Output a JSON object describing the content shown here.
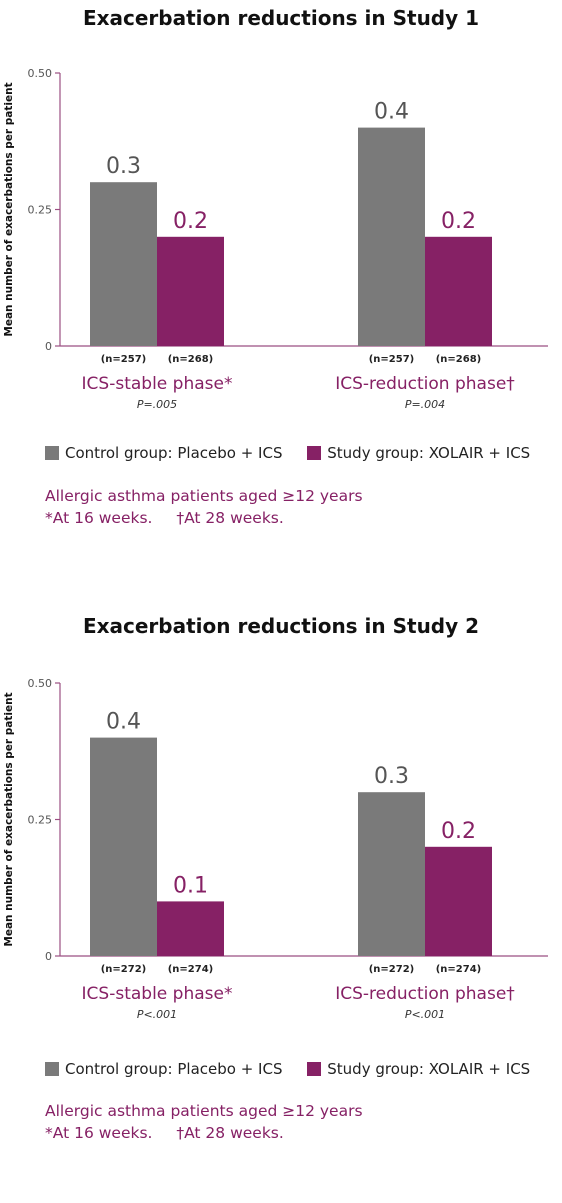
{
  "colors": {
    "control": "#7a7a7a",
    "study": "#862165",
    "axis": "#9b4f82",
    "phase": "#862165"
  },
  "legend": {
    "control": "Control group: Placebo + ICS",
    "study": "Study group: XOLAIR + ICS"
  },
  "chart_data": [
    {
      "type": "bar",
      "title": "Exacerbation reductions in Study 1",
      "ylabel": "Mean number of exacerbations per patient",
      "ylim": [
        0,
        0.5
      ],
      "yticks": [
        "0",
        "0.25",
        "0.50"
      ],
      "categories": [
        "ICS-stable phase*",
        "ICS-reduction phase†"
      ],
      "pvalues": [
        "P=.005",
        "P=.004"
      ],
      "series": [
        {
          "name": "Control group: Placebo + ICS",
          "values": [
            0.3,
            0.4
          ],
          "labels": [
            "0.3",
            "0.4"
          ],
          "n": [
            "(n=257)",
            "(n=257)"
          ]
        },
        {
          "name": "Study group: XOLAIR + ICS",
          "values": [
            0.2,
            0.2
          ],
          "labels": [
            "0.2",
            "0.2"
          ],
          "n": [
            "(n=268)",
            "(n=268)"
          ]
        }
      ],
      "notes": [
        "Allergic asthma patients aged ≥12 years",
        "*At 16 weeks.",
        "†At 28 weeks."
      ]
    },
    {
      "type": "bar",
      "title": "Exacerbation reductions in Study 2",
      "ylabel": "Mean number of exacerbations per patient",
      "ylim": [
        0,
        0.5
      ],
      "yticks": [
        "0",
        "0.25",
        "0.50"
      ],
      "categories": [
        "ICS-stable phase*",
        "ICS-reduction phase†"
      ],
      "pvalues": [
        "P<.001",
        "P<.001"
      ],
      "series": [
        {
          "name": "Control group: Placebo + ICS",
          "values": [
            0.4,
            0.3
          ],
          "labels": [
            "0.4",
            "0.3"
          ],
          "n": [
            "(n=272)",
            "(n=272)"
          ]
        },
        {
          "name": "Study group: XOLAIR + ICS",
          "values": [
            0.1,
            0.2
          ],
          "labels": [
            "0.1",
            "0.2"
          ],
          "n": [
            "(n=274)",
            "(n=274)"
          ]
        }
      ],
      "notes": [
        "Allergic asthma patients aged ≥12 years",
        "*At 16 weeks.",
        "†At 28 weeks."
      ]
    }
  ]
}
